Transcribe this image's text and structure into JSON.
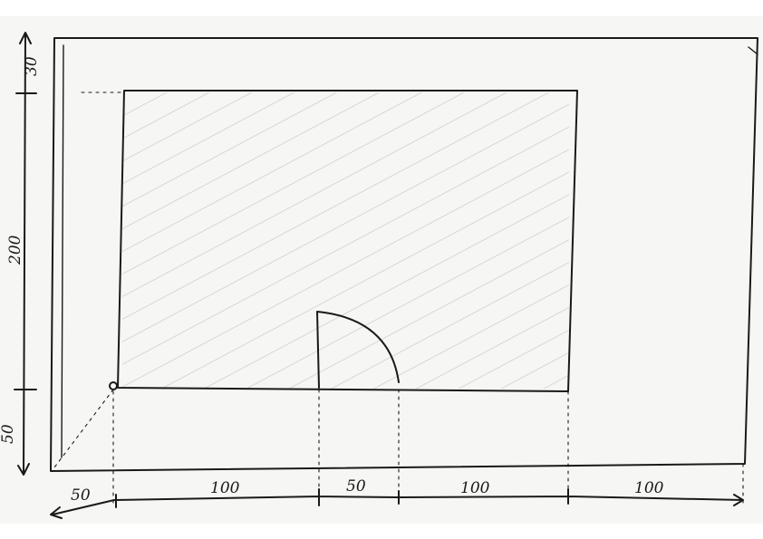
{
  "labels": {
    "top_margin": "30",
    "panel_height": "200",
    "bottom_margin": "50",
    "left_margin": "50",
    "segment_1": "100",
    "segment_2": "50",
    "segment_3": "100",
    "segment_4": "100"
  },
  "colors": {
    "ink": "#1a1a1a",
    "paper": "#f6f6f4",
    "hatch": "#cfcfcf"
  }
}
